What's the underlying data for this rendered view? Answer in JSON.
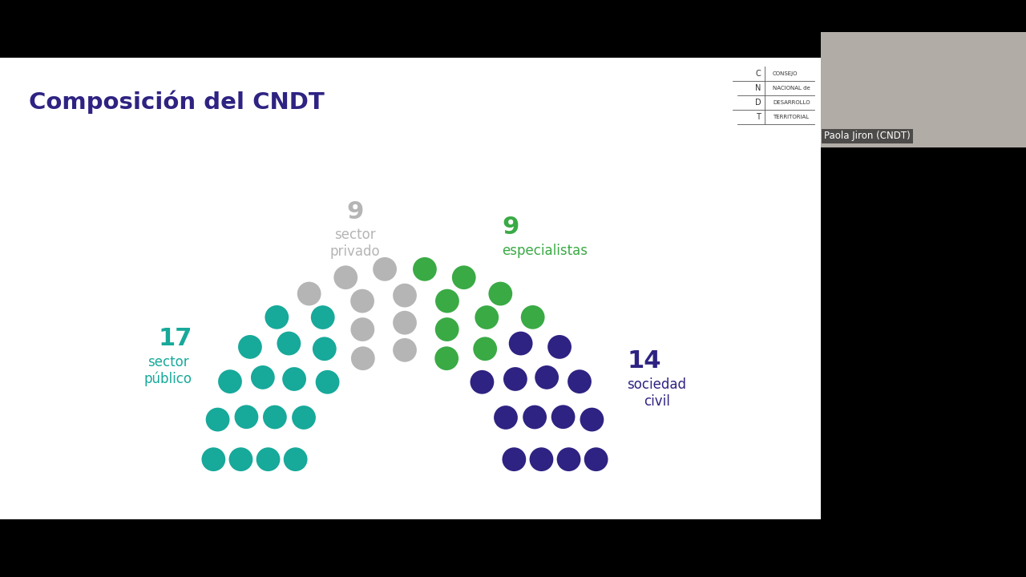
{
  "chart_data": {
    "type": "parliament",
    "title": "Composición del CNDT",
    "categories": [
      "sector público",
      "sector privado",
      "especialistas",
      "sociedad civil"
    ],
    "values": [
      17,
      9,
      9,
      14
    ],
    "colors": [
      "#17a99a",
      "#b5b5b5",
      "#3aaa45",
      "#2e2382"
    ],
    "data_labels": true,
    "tick_labels": false
  },
  "logo": {
    "letters": [
      "C",
      "N",
      "D",
      "T"
    ],
    "words": [
      "CONSEJO",
      "NACIONAL de",
      "DESARROLLO",
      "TERRITORIAL"
    ]
  },
  "participant": {
    "name": "Paola Jiron (CNDT)"
  }
}
